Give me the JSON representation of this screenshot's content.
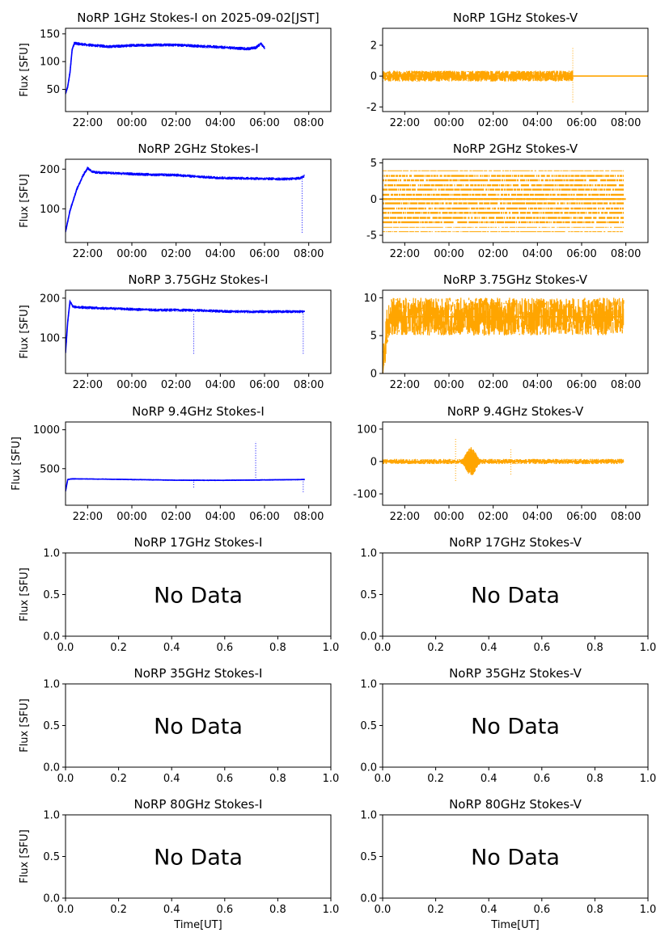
{
  "figure": {
    "xlabel": "Time[UT]",
    "ylabel": "Flux [SFU]",
    "nodata_text": "No Data",
    "time_ticks": [
      "22:00",
      "00:00",
      "02:00",
      "04:00",
      "06:00",
      "08:00"
    ],
    "norm_ticks": [
      "0.0",
      "0.2",
      "0.4",
      "0.6",
      "0.8",
      "1.0"
    ]
  },
  "chart_data": [
    {
      "id": "1ghz_i",
      "type": "scatter",
      "title": "NoRP 1GHz Stokes-I on 2025-09-02[JST]",
      "ylabel": "Flux [SFU]",
      "xlabel": "",
      "color": "#0000ff",
      "x_unit": "hours UT (from 20:30, day 1)",
      "xlim": [
        21.0,
        33.0
      ],
      "ylim": [
        10,
        160
      ],
      "yticks": [
        50,
        100,
        150
      ],
      "xticks": [
        "22:00",
        "00:00",
        "02:00",
        "04:00",
        "06:00",
        "08:00"
      ],
      "xtick_values": [
        22,
        24,
        26,
        28,
        30,
        32
      ],
      "series": [
        {
          "x": [
            21.0,
            21.1,
            21.2,
            21.3,
            21.4,
            22.0,
            23.0,
            24.0,
            25.0,
            26.0,
            27.0,
            28.0,
            28.8,
            29.2,
            29.6,
            29.85,
            30.0
          ],
          "y": [
            42,
            55,
            80,
            122,
            133,
            130,
            127,
            129,
            130,
            130,
            128,
            126,
            124,
            123,
            125,
            133,
            124
          ],
          "spread": 3
        }
      ]
    },
    {
      "id": "1ghz_v",
      "type": "scatter",
      "title": "NoRP 1GHz Stokes-V",
      "color": "#ffa500",
      "xlim": [
        21.0,
        33.0
      ],
      "ylim": [
        -2.3,
        3.1
      ],
      "yticks": [
        -2,
        0,
        2
      ],
      "xticks": [
        "22:00",
        "00:00",
        "02:00",
        "04:00",
        "06:00",
        "08:00"
      ],
      "xtick_values": [
        22,
        24,
        26,
        28,
        30,
        32
      ],
      "series": [
        {
          "x": [
            21.0,
            29.6
          ],
          "y": [
            0,
            0
          ],
          "spread": 0.35,
          "note_ignored": ""
        },
        {
          "x": [
            29.6,
            33.0
          ],
          "y": [
            0,
            0
          ],
          "spread": 0.02
        }
      ],
      "spikes": [
        {
          "x": 29.6,
          "y": [
            -1.7,
            1.9
          ]
        }
      ]
    },
    {
      "id": "2ghz_i",
      "type": "scatter",
      "title": "NoRP 2GHz Stokes-I",
      "color": "#0000ff",
      "xlim": [
        21.0,
        33.0
      ],
      "ylim": [
        15,
        225
      ],
      "yticks": [
        100,
        200
      ],
      "xticks": [
        "22:00",
        "00:00",
        "02:00",
        "04:00",
        "06:00",
        "08:00"
      ],
      "xtick_values": [
        22,
        24,
        26,
        28,
        30,
        32
      ],
      "series": [
        {
          "x": [
            21.0,
            21.2,
            21.5,
            21.8,
            22.0,
            22.2,
            23.0,
            24.0,
            25.0,
            26.0,
            27.0,
            28.0,
            29.0,
            30.0,
            31.0,
            31.6,
            31.8
          ],
          "y": [
            42,
            95,
            148,
            185,
            203,
            193,
            190,
            188,
            186,
            185,
            181,
            178,
            177,
            176,
            175,
            177,
            183
          ],
          "spread": 4
        }
      ],
      "spikes": [
        {
          "x": 31.7,
          "y": [
            40,
            180
          ]
        }
      ]
    },
    {
      "id": "2ghz_v",
      "type": "scatter",
      "title": "NoRP 2GHz Stokes-V",
      "color": "#ffa500",
      "xlim": [
        21.0,
        33.0
      ],
      "ylim": [
        -6,
        5.5
      ],
      "yticks": [
        -5,
        0,
        5
      ],
      "xticks": [
        "22:00",
        "00:00",
        "02:00",
        "04:00",
        "06:00",
        "08:00"
      ],
      "xtick_values": [
        22,
        24,
        26,
        28,
        30,
        32
      ],
      "levels": [
        -4.5,
        -3.9,
        -3.2,
        -2.6,
        -1.9,
        -1.3,
        -0.6,
        0,
        0.6,
        1.3,
        1.9,
        2.6,
        3.2,
        3.9
      ],
      "x_range": [
        21.0,
        31.9
      ]
    },
    {
      "id": "375ghz_i",
      "type": "scatter",
      "title": "NoRP 3.75GHz Stokes-I",
      "color": "#0000ff",
      "xlim": [
        21.0,
        33.0
      ],
      "ylim": [
        10,
        220
      ],
      "yticks": [
        100,
        200
      ],
      "xticks": [
        "22:00",
        "00:00",
        "02:00",
        "04:00",
        "06:00",
        "08:00"
      ],
      "xtick_values": [
        22,
        24,
        26,
        28,
        30,
        32
      ],
      "series": [
        {
          "x": [
            21.0,
            21.1,
            21.2,
            21.35,
            22.0,
            23.0,
            24.0,
            25.0,
            26.0,
            27.0,
            28.0,
            29.0,
            30.0,
            31.0,
            31.8
          ],
          "y": [
            62,
            140,
            192,
            178,
            176,
            174,
            172,
            170,
            170,
            169,
            167,
            166,
            166,
            166,
            166
          ],
          "spread": 4
        }
      ],
      "spikes": [
        {
          "x": 26.8,
          "y": [
            60,
            160
          ]
        },
        {
          "x": 31.75,
          "y": [
            60,
            160
          ]
        }
      ]
    },
    {
      "id": "375ghz_v",
      "type": "scatter",
      "title": "NoRP 3.75GHz Stokes-V",
      "color": "#ffa500",
      "xlim": [
        21.0,
        33.0
      ],
      "ylim": [
        0,
        11
      ],
      "yticks": [
        0,
        5,
        10
      ],
      "xticks": [
        "22:00",
        "00:00",
        "02:00",
        "04:00",
        "06:00",
        "08:00"
      ],
      "xtick_values": [
        22,
        24,
        26,
        28,
        30,
        32
      ],
      "series": [
        {
          "x": [
            21.0,
            21.2,
            21.4,
            31.9
          ],
          "y": [
            0,
            6.5,
            7.5,
            7.5
          ],
          "spread": 2.5
        }
      ]
    },
    {
      "id": "94ghz_i",
      "type": "scatter",
      "title": "NoRP 9.4GHz Stokes-I",
      "color": "#0000ff",
      "xlim": [
        21.0,
        33.0
      ],
      "ylim": [
        30,
        1100
      ],
      "yticks": [
        500,
        1000
      ],
      "xticks": [
        "22:00",
        "00:00",
        "02:00",
        "04:00",
        "06:00",
        "08:00"
      ],
      "xtick_values": [
        22,
        24,
        26,
        28,
        30,
        32
      ],
      "series": [
        {
          "x": [
            21.0,
            21.1,
            21.3,
            22.0,
            24.0,
            26.0,
            28.0,
            30.0,
            31.8
          ],
          "y": [
            210,
            360,
            370,
            368,
            360,
            352,
            350,
            355,
            360
          ],
          "spread": 10
        }
      ],
      "spikes": [
        {
          "x": 26.8,
          "y": [
            260,
            360
          ]
        },
        {
          "x": 29.6,
          "y": [
            380,
            850
          ]
        },
        {
          "x": 31.75,
          "y": [
            200,
            360
          ]
        }
      ]
    },
    {
      "id": "94ghz_v",
      "type": "scatter",
      "title": "NoRP 9.4GHz Stokes-V",
      "color": "#ffa500",
      "xlim": [
        21.0,
        33.0
      ],
      "ylim": [
        -135,
        122
      ],
      "yticks": [
        -100,
        0,
        100
      ],
      "xticks": [
        "22:00",
        "00:00",
        "02:00",
        "04:00",
        "06:00",
        "08:00"
      ],
      "xtick_values": [
        22,
        24,
        26,
        28,
        30,
        32
      ],
      "series": [
        {
          "x": [
            21.0,
            31.9
          ],
          "y": [
            0,
            0
          ],
          "spread": 8
        }
      ],
      "bursts": [
        {
          "x": 25.0,
          "w": 0.9,
          "amp": 45
        }
      ],
      "spikes": [
        {
          "x": 24.3,
          "y": [
            -60,
            70
          ]
        },
        {
          "x": 26.8,
          "y": [
            -40,
            40
          ]
        }
      ]
    },
    {
      "id": "17ghz_i",
      "type": "empty",
      "title": "NoRP 17GHz Stokes-I",
      "text": "No Data"
    },
    {
      "id": "17ghz_v",
      "type": "empty",
      "title": "NoRP 17GHz Stokes-V",
      "text": "No Data"
    },
    {
      "id": "35ghz_i",
      "type": "empty",
      "title": "NoRP 35GHz Stokes-I",
      "text": "No Data"
    },
    {
      "id": "35ghz_v",
      "type": "empty",
      "title": "NoRP 35GHz Stokes-V",
      "text": "No Data"
    },
    {
      "id": "80ghz_i",
      "type": "empty",
      "title": "NoRP 80GHz Stokes-I",
      "text": "No Data"
    },
    {
      "id": "80ghz_v",
      "type": "empty",
      "title": "NoRP 80GHz Stokes-V",
      "text": "No Data"
    }
  ]
}
